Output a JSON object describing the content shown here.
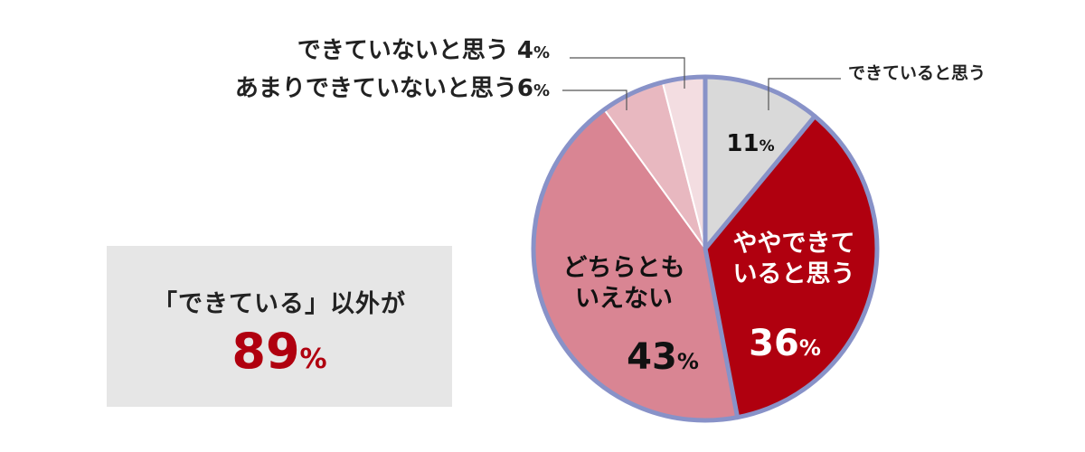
{
  "chart_data": {
    "type": "pie",
    "start_angle_deg": 0,
    "direction": "clockwise",
    "percent_sign": "%",
    "border_color": "#8892c8",
    "slices": [
      {
        "label_lines": [
          "できていると思う"
        ],
        "value": 11,
        "color": "#d9d9d9",
        "outlined": false
      },
      {
        "label_lines": [
          "ややできて",
          "いると思う"
        ],
        "value": 36,
        "color": "#b0000f",
        "outlined": true
      },
      {
        "label_lines": [
          "どちらとも",
          "いえない"
        ],
        "value": 43,
        "color": "#d98593",
        "outlined": false
      },
      {
        "label_lines": [
          "あまりできていないと思う"
        ],
        "value": 6,
        "color": "#e8b8c0",
        "outlined": false
      },
      {
        "label_lines": [
          "できていないと思う"
        ],
        "value": 4,
        "color": "#f3dde1",
        "outlined": false
      }
    ]
  },
  "summary": {
    "label": "「できている」以外が",
    "value": "89",
    "unit": "%"
  }
}
